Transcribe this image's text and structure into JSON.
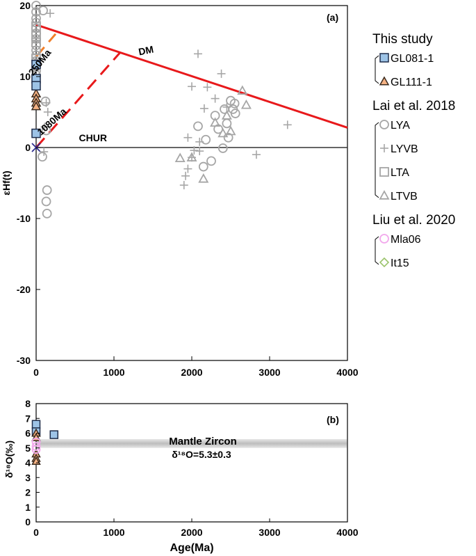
{
  "chart_data": [
    {
      "type": "scatter",
      "panel_label": "(a)",
      "xlabel": "",
      "ylabel": "εHf(t)",
      "xlim": [
        0,
        4000
      ],
      "ylim": [
        -30,
        20
      ],
      "x_ticks": [
        0,
        1000,
        2000,
        3000,
        4000
      ],
      "y_ticks": [
        -30,
        -20,
        -10,
        0,
        10,
        20
      ],
      "grid": false,
      "reference_lines": [
        {
          "name": "DM",
          "points": [
            [
              0,
              17.3
            ],
            [
              4000,
              2.8
            ]
          ],
          "color": "#e8191b",
          "style": "solid"
        },
        {
          "name": "CHUR",
          "points": [
            [
              0,
              0
            ],
            [
              4000,
              0
            ]
          ],
          "color": "#333333",
          "style": "solid"
        },
        {
          "name": "1080Ma",
          "points": [
            [
              0,
              0
            ],
            [
              1080,
              13.4
            ]
          ],
          "color": "#e8191b",
          "style": "dashed"
        },
        {
          "name": "250Ma",
          "points": [
            [
              0,
              12.8
            ],
            [
              250,
              16.0
            ]
          ],
          "color": "#f07f2a",
          "style": "dashed"
        }
      ],
      "series": [
        {
          "name": "GL081-1",
          "marker": "square",
          "color": "#9dc3e6",
          "stroke": "#1f2d4a",
          "points": [
            [
              0,
              11.7
            ],
            [
              0,
              9.7
            ],
            [
              0,
              8.7
            ],
            [
              0,
              2.0
            ]
          ]
        },
        {
          "name": "GL111-1",
          "marker": "triangle",
          "color": "#f4b183",
          "stroke": "#3a2a1e",
          "points": [
            [
              0,
              7.6
            ],
            [
              0,
              6.9
            ],
            [
              0,
              6.3
            ],
            [
              0,
              5.8
            ]
          ]
        },
        {
          "name": "LYA",
          "marker": "circle",
          "color": "none",
          "stroke": "#a6a6a6",
          "points": [
            [
              0,
              20
            ],
            [
              0,
              19.1
            ],
            [
              0,
              18.2
            ],
            [
              0,
              17.6
            ],
            [
              0,
              16.8
            ],
            [
              0,
              16.1
            ],
            [
              0,
              15.3
            ],
            [
              0,
              14.4
            ],
            [
              0,
              13.7
            ],
            [
              0,
              13.0
            ],
            [
              0,
              12.2
            ],
            [
              0,
              11.4
            ],
            [
              0,
              10.8
            ],
            [
              0,
              10.2
            ],
            [
              90,
              19.3
            ],
            [
              120,
              6.5
            ],
            [
              130,
              2.4
            ],
            [
              80,
              -1.3
            ],
            [
              140,
              -6.0
            ],
            [
              130,
              -7.6
            ],
            [
              140,
              -9.3
            ],
            [
              2080,
              3.0
            ],
            [
              2150,
              -2.7
            ],
            [
              2180,
              1.1
            ],
            [
              2250,
              -1.9
            ],
            [
              2300,
              4.5
            ],
            [
              2340,
              2.6
            ],
            [
              2400,
              -0.1
            ],
            [
              2420,
              5.4
            ],
            [
              2450,
              3.4
            ],
            [
              2470,
              1.4
            ],
            [
              2500,
              6.6
            ],
            [
              2530,
              5.4
            ],
            [
              2550,
              6.2
            ],
            [
              2560,
              4.8
            ]
          ]
        },
        {
          "name": "LYVB",
          "marker": "plus",
          "color": "none",
          "stroke": "#a6a6a6",
          "points": [
            [
              180,
              18.9
            ],
            [
              130,
              6.3
            ],
            [
              150,
              5.0
            ],
            [
              110,
              2.9
            ],
            [
              100,
              -0.6
            ],
            [
              2080,
              13.2
            ],
            [
              2000,
              8.6
            ],
            [
              2160,
              5.5
            ],
            [
              2200,
              8.5
            ],
            [
              2300,
              6.9
            ],
            [
              2380,
              10.4
            ],
            [
              2450,
              5.7
            ],
            [
              2030,
              -0.4
            ],
            [
              2000,
              -1.4
            ],
            [
              1950,
              1.4
            ],
            [
              1950,
              -3.0
            ],
            [
              1920,
              -4.0
            ],
            [
              1900,
              -5.3
            ],
            [
              2100,
              -0.5
            ],
            [
              2100,
              0.8
            ],
            [
              2830,
              -1.0
            ],
            [
              3230,
              3.2
            ]
          ]
        },
        {
          "name": "LTA",
          "marker": "square-open",
          "color": "none",
          "stroke": "#a6a6a6",
          "points": [
            [
              0,
              17.0
            ],
            [
              0,
              15.7
            ],
            [
              0,
              14.8
            ],
            [
              0,
              12.5
            ]
          ]
        },
        {
          "name": "LTVB",
          "marker": "triangle-open",
          "color": "none",
          "stroke": "#a6a6a6",
          "points": [
            [
              2650,
              8.0
            ],
            [
              2700,
              6.0
            ],
            [
              2450,
              4.5
            ],
            [
              2300,
              3.5
            ],
            [
              2400,
              2.0
            ],
            [
              2500,
              2.3
            ],
            [
              2000,
              -1.4
            ],
            [
              2150,
              -4.4
            ],
            [
              1850,
              -1.5
            ]
          ]
        }
      ],
      "annotations": [
        {
          "text": "DM",
          "x": 1420,
          "y": 13.2,
          "rotate": -11
        },
        {
          "text": "CHUR",
          "x": 730,
          "y": 0.9,
          "rotate": 0
        },
        {
          "text": "1080Ma",
          "x": 230,
          "y": 3.3,
          "rotate": -42
        },
        {
          "text": "250Ma",
          "x": 80,
          "y": 11.7,
          "rotate": -52
        }
      ]
    },
    {
      "type": "scatter",
      "panel_label": "(b)",
      "xlabel": "Age(Ma)",
      "ylabel": "δ¹⁸O(‰)",
      "xlim": [
        0,
        4000
      ],
      "ylim": [
        0,
        8
      ],
      "x_ticks": [
        0,
        1000,
        2000,
        3000,
        4000
      ],
      "y_ticks": [
        0,
        1,
        2,
        3,
        4,
        5,
        6,
        7,
        8
      ],
      "grid": false,
      "band": {
        "label": "Mantle Zircon",
        "sublabel": "δ¹⁸O=5.3±0.3",
        "y_low": 5.0,
        "y_high": 5.6
      },
      "series": [
        {
          "name": "GL081-1",
          "marker": "square",
          "color": "#9dc3e6",
          "stroke": "#1f2d4a",
          "points": [
            [
              0,
              6.6
            ],
            [
              0,
              6.1
            ],
            [
              230,
              5.9
            ]
          ]
        },
        {
          "name": "GL111-1",
          "marker": "triangle",
          "color": "#f4b183",
          "stroke": "#3a2a1e",
          "points": [
            [
              0,
              6.0
            ],
            [
              0,
              5.7
            ],
            [
              0,
              4.6
            ],
            [
              0,
              4.3
            ],
            [
              0,
              4.1
            ]
          ]
        },
        {
          "name": "Mla06",
          "marker": "circle-open",
          "color": "none",
          "stroke": "#f2a8ec",
          "points": [
            [
              0,
              5.4
            ],
            [
              0,
              5.1
            ],
            [
              0,
              4.9
            ]
          ]
        },
        {
          "name": "It15",
          "marker": "diamond-open",
          "color": "none",
          "stroke": "#9bc36b",
          "points": []
        }
      ]
    }
  ],
  "legend": {
    "groups": [
      {
        "heading": "This study",
        "items": [
          {
            "label": "GL081-1",
            "marker": "square",
            "color": "#9dc3e6",
            "stroke": "#1f2d4a"
          },
          {
            "label": "GL111-1",
            "marker": "triangle",
            "color": "#f4b183",
            "stroke": "#3a2a1e"
          }
        ]
      },
      {
        "heading": "Lai et al. 2018",
        "items": [
          {
            "label": "LYA",
            "marker": "circle-open",
            "color": "none",
            "stroke": "#a6a6a6"
          },
          {
            "label": "LYVB",
            "marker": "plus",
            "color": "none",
            "stroke": "#a6a6a6"
          },
          {
            "label": "LTA",
            "marker": "square-open",
            "color": "none",
            "stroke": "#a6a6a6"
          },
          {
            "label": "LTVB",
            "marker": "triangle-open",
            "color": "none",
            "stroke": "#a6a6a6"
          }
        ]
      },
      {
        "heading": "Liu et al. 2020",
        "items": [
          {
            "label": "Mla06",
            "marker": "circle-open",
            "color": "none",
            "stroke": "#f2a8ec"
          },
          {
            "label": "It15",
            "marker": "diamond-open",
            "color": "none",
            "stroke": "#9bc36b"
          }
        ]
      }
    ]
  }
}
